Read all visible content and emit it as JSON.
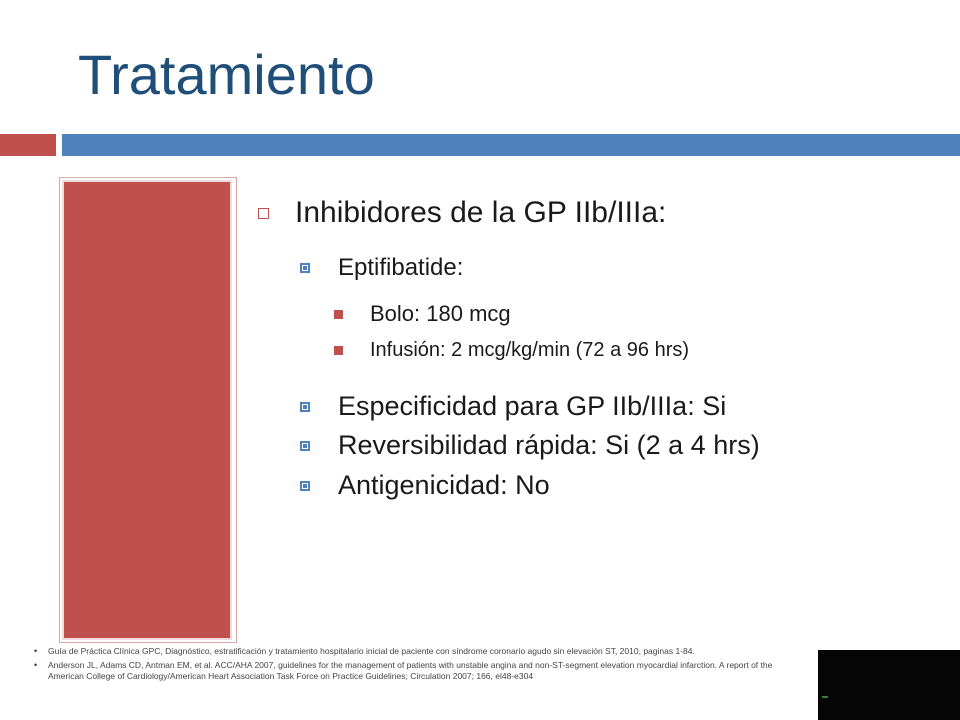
{
  "slide": {
    "title": "Tratamiento",
    "heading": "Inhibidores de la GP IIb/IIIa:",
    "drug": "Eptifibatide:",
    "doses": [
      "Bolo: 180 mcg",
      "Infusión: 2 mcg/kg/min (72 a 96 hrs)"
    ],
    "properties": [
      "Especificidad para GP IIb/IIIa: Si",
      "Reversibilidad rápida: Si (2 a 4 hrs)",
      "Antigenicidad: No"
    ],
    "references": [
      "Guía de Práctica Clínica GPC, Diagnóstico, estratificación y tratamiento hospitalario inicial de paciente con síndrome coronario agudo sin elevación ST, 2010, paginas 1-84.",
      "Anderson JL, Adams CD, Antman EM, et al. ACC/AHA 2007, guidelines for the management of patients with unstable angina and non-ST-segment elevation myocardial infarction. A report of the American College of Cardiology/American Heart Association Task Force on Practice Guidelines; Circulation 2007; 166, el48-e304"
    ],
    "reference_bullet": "•"
  },
  "colors": {
    "title": "#1f4e79",
    "accent_red": "#c0504d",
    "accent_blue": "#4f81bd"
  }
}
